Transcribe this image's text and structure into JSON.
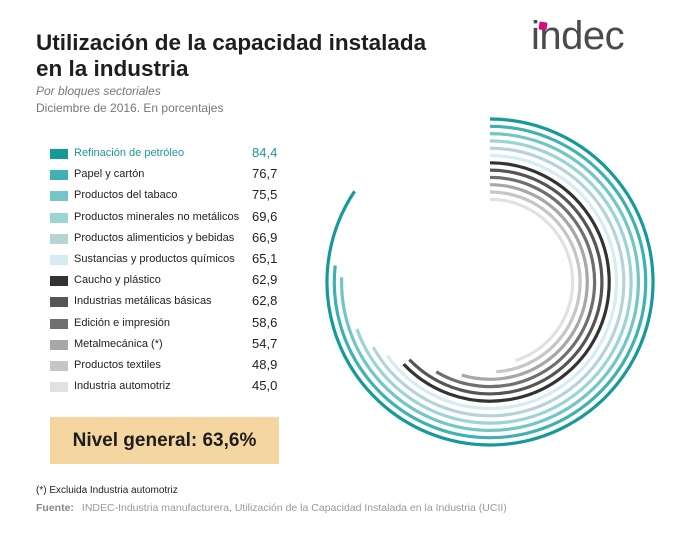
{
  "header": {
    "title_line1": "Utilización de la capacidad instalada",
    "title_line2": "en la industria",
    "subtitle": "Por bloques sectoriales",
    "period": "Diciembre de 2016. En porcentajes",
    "logo": "indec"
  },
  "chart_data": {
    "type": "radial-bar",
    "unit": "%",
    "max": 100,
    "series": [
      {
        "name": "Refinación de petróleo",
        "value": 84.4,
        "label": "84,4",
        "color": "#16999a"
      },
      {
        "name": "Papel y cartón",
        "value": 76.7,
        "label": "76,7",
        "color": "#3fb1b4"
      },
      {
        "name": "Productos del tabaco",
        "value": 75.5,
        "label": "75,5",
        "color": "#72c6c9"
      },
      {
        "name": "Productos minerales no metálicos",
        "value": 69.6,
        "label": "69,6",
        "color": "#9ad4d7"
      },
      {
        "name": "Productos alimenticios y bebidas",
        "value": 66.9,
        "label": "66,9",
        "color": "#b6d4d6"
      },
      {
        "name": "Sustancias y productos químicos",
        "value": 65.1,
        "label": "65,1",
        "color": "#d6ecf3"
      },
      {
        "name": "Caucho y plástico",
        "value": 62.9,
        "label": "62,9",
        "color": "#333333"
      },
      {
        "name": "Industrias metálicas básicas",
        "value": 62.8,
        "label": "62,8",
        "color": "#555555"
      },
      {
        "name": "Edición e impresión",
        "value": 58.6,
        "label": "58,6",
        "color": "#6f6f6f"
      },
      {
        "name": "Metalmecánica (*)",
        "value": 54.7,
        "label": "54,7",
        "color": "#a7a7a7"
      },
      {
        "name": "Productos textiles",
        "value": 48.9,
        "label": "48,9",
        "color": "#c6c6c6"
      },
      {
        "name": "Industria automotriz",
        "value": 45.0,
        "label": "45,0",
        "color": "#e1e1e1"
      }
    ]
  },
  "summary": {
    "nivel_general": "Nivel general: 63,6%"
  },
  "footer": {
    "note": "(*) Excluida Industria automotriz",
    "source_label": "Fuente:",
    "source_text": "INDEC-Industria manufacturera, Utilización de la Capacidad Instalada en la Industria (UCII)"
  }
}
